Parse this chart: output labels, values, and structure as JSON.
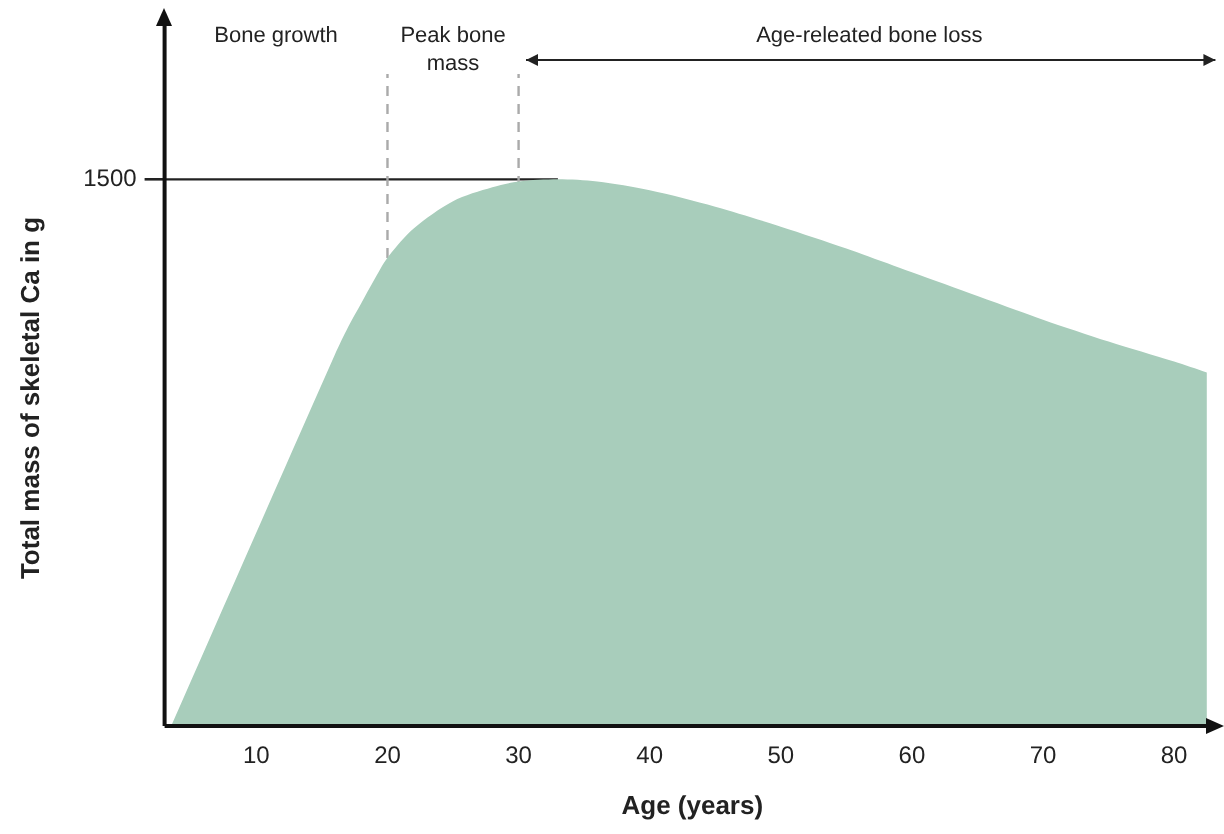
{
  "chart_data": {
    "type": "area",
    "xlabel": "Age (years)",
    "ylabel": "Total mass of skeletal Ca in g",
    "xlim": [
      3,
      83.5
    ],
    "xticks": [
      10,
      20,
      30,
      40,
      50,
      60,
      70,
      80
    ],
    "ylim": [
      0,
      1800
    ],
    "yticks": [
      1500
    ],
    "grid": false,
    "legend": false,
    "series": [
      {
        "color": "#a8cdbb",
        "x": [
          3.5,
          16,
          17,
          18,
          19,
          20,
          22,
          25,
          28,
          30,
          33,
          36,
          40,
          45,
          50,
          55,
          60,
          65,
          70,
          75,
          80,
          82.5
        ],
        "values": [
          0,
          1020,
          1095,
          1160,
          1225,
          1285,
          1365,
          1440,
          1478,
          1494,
          1500,
          1494,
          1470,
          1425,
          1370,
          1310,
          1245,
          1180,
          1115,
          1055,
          1000,
          970
        ]
      }
    ],
    "ref_lines": [
      {
        "axis": "y",
        "value": 1500,
        "color": "#222222",
        "line_style": "solid"
      },
      {
        "axis": "x",
        "value": 20,
        "color": "#aaaaaa",
        "line_style": "dashed"
      },
      {
        "axis": "x",
        "value": 30,
        "color": "#aaaaaa",
        "line_style": "dashed"
      }
    ],
    "annotations": [
      "Bone growth",
      "Peak bone mass",
      "Age-releated bone loss"
    ]
  }
}
